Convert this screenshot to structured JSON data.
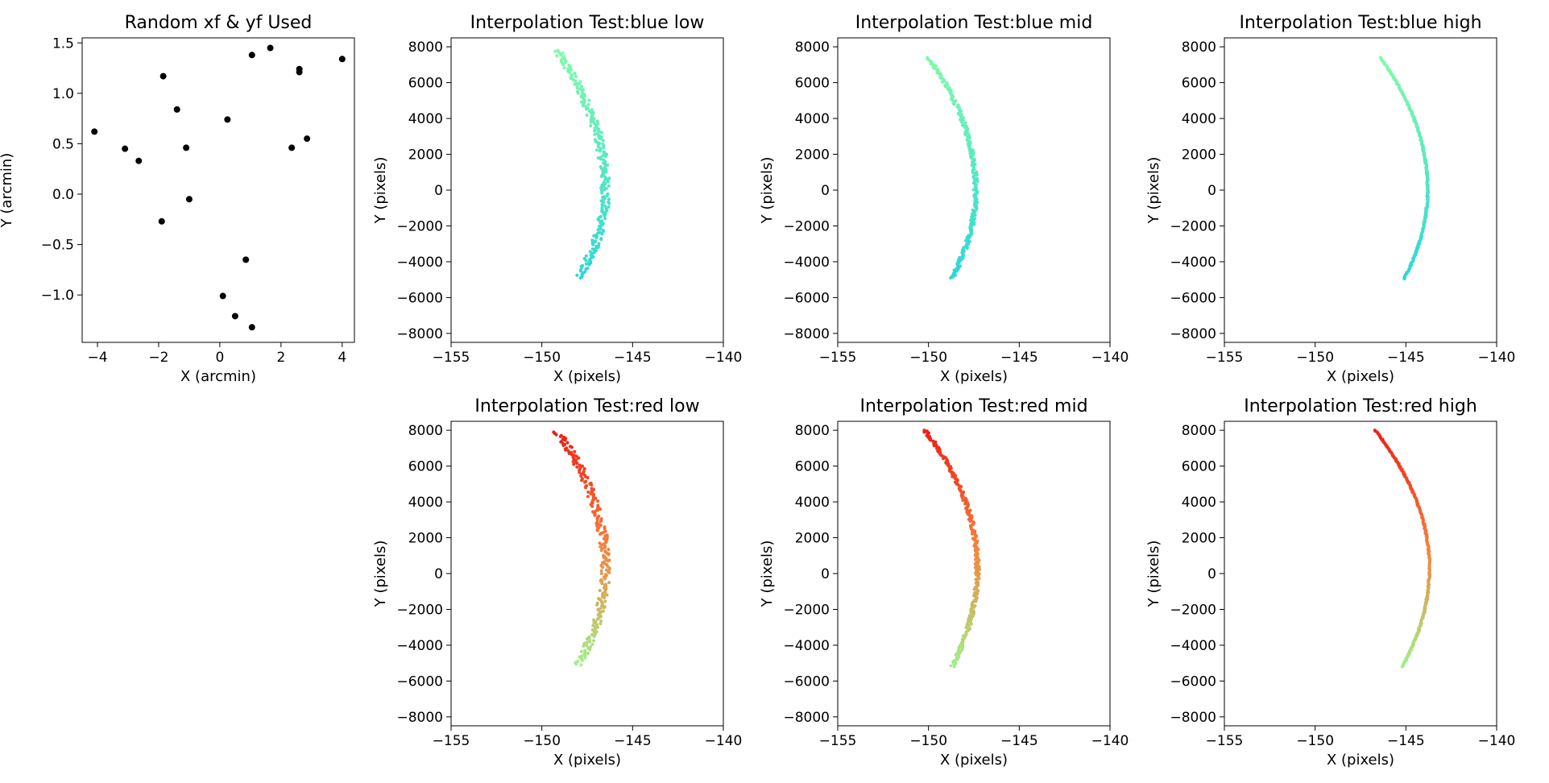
{
  "chart_data": [
    {
      "type": "scatter",
      "title": "Random xf & yf Used",
      "xlabel": "X (arcmin)",
      "ylabel": "Y (arcmin)",
      "xlim": [
        -4.5,
        4.4
      ],
      "ylim": [
        -1.47,
        1.55
      ],
      "xticks": [
        -4,
        -2,
        0,
        2,
        4
      ],
      "xtick_labels": [
        "−4",
        "−2",
        "0",
        "2",
        "4"
      ],
      "yticks": [
        -1.0,
        -0.5,
        0.0,
        0.5,
        1.0,
        1.5
      ],
      "ytick_labels": [
        "−1.0",
        "−0.5",
        "0.0",
        "0.5",
        "1.0",
        "1.5"
      ],
      "grid": false,
      "color": "#000000",
      "points": [
        [
          -4.1,
          0.62
        ],
        [
          -3.1,
          0.45
        ],
        [
          -2.65,
          0.33
        ],
        [
          -1.85,
          1.17
        ],
        [
          -1.4,
          0.84
        ],
        [
          -1.1,
          0.46
        ],
        [
          -1.0,
          -0.05
        ],
        [
          -1.9,
          -0.27
        ],
        [
          0.25,
          0.74
        ],
        [
          1.05,
          1.38
        ],
        [
          1.65,
          1.45
        ],
        [
          2.6,
          1.24
        ],
        [
          2.6,
          1.21
        ],
        [
          4.0,
          1.34
        ],
        [
          2.85,
          0.55
        ],
        [
          2.35,
          0.46
        ],
        [
          0.85,
          -0.65
        ],
        [
          0.1,
          -1.01
        ],
        [
          0.5,
          -1.21
        ],
        [
          1.05,
          -1.32
        ]
      ]
    },
    {
      "type": "scatter",
      "title": "Interpolation Test:blue low",
      "xlabel": "X (pixels)",
      "ylabel": "Y (pixels)",
      "xlim": [
        -155,
        -140
      ],
      "ylim": [
        -8500,
        8500
      ],
      "color_scale": "blue",
      "curve": {
        "x_top": -149.2,
        "y_top": 7800,
        "x_vertex": -146.5,
        "y_vertex": 0,
        "x_bottom": -148.0,
        "y_bottom": -4900
      },
      "scatter": 0.25
    },
    {
      "type": "scatter",
      "title": "Interpolation Test:blue mid",
      "xlabel": "X (pixels)",
      "ylabel": "Y (pixels)",
      "xlim": [
        -155,
        -140
      ],
      "ylim": [
        -8500,
        8500
      ],
      "color_scale": "blue",
      "curve": {
        "x_top": -150.0,
        "y_top": 7400,
        "x_vertex": -147.4,
        "y_vertex": 0,
        "x_bottom": -148.7,
        "y_bottom": -4900
      },
      "scatter": 0.12
    },
    {
      "type": "scatter",
      "title": "Interpolation Test:blue high",
      "xlabel": "X (pixels)",
      "ylabel": "Y (pixels)",
      "xlim": [
        -155,
        -140
      ],
      "ylim": [
        -8500,
        8500
      ],
      "color_scale": "blue",
      "curve": {
        "x_top": -146.4,
        "y_top": 7400,
        "x_vertex": -143.8,
        "y_vertex": 0,
        "x_bottom": -145.1,
        "y_bottom": -4950
      },
      "scatter": 0.04
    },
    {
      "type": "scatter",
      "title": "Interpolation Test:red low",
      "xlabel": "X (pixels)",
      "ylabel": "Y (pixels)",
      "xlim": [
        -155,
        -140
      ],
      "ylim": [
        -8500,
        8500
      ],
      "color_scale": "red",
      "curve": {
        "x_top": -149.1,
        "y_top": 7900,
        "x_vertex": -146.5,
        "y_vertex": 300,
        "x_bottom": -148.0,
        "y_bottom": -5100
      },
      "scatter": 0.25
    },
    {
      "type": "scatter",
      "title": "Interpolation Test:red mid",
      "xlabel": "X (pixels)",
      "ylabel": "Y (pixels)",
      "xlim": [
        -155,
        -140
      ],
      "ylim": [
        -8500,
        8500
      ],
      "color_scale": "red",
      "curve": {
        "x_top": -150.2,
        "y_top": 8000,
        "x_vertex": -147.3,
        "y_vertex": 300,
        "x_bottom": -148.7,
        "y_bottom": -5200
      },
      "scatter": 0.12
    },
    {
      "type": "scatter",
      "title": "Interpolation Test:red high",
      "xlabel": "X (pixels)",
      "ylabel": "Y (pixels)",
      "xlim": [
        -155,
        -140
      ],
      "ylim": [
        -8500,
        8500
      ],
      "color_scale": "red",
      "curve": {
        "x_top": -146.7,
        "y_top": 8000,
        "x_vertex": -143.7,
        "y_vertex": 300,
        "x_bottom": -145.2,
        "y_bottom": -5200
      },
      "scatter": 0.04
    }
  ],
  "interp_xticks": [
    -155,
    -150,
    -145,
    -140
  ],
  "interp_xtick_labels": [
    "−155",
    "−150",
    "−145",
    "−140"
  ],
  "interp_yticks": [
    -8000,
    -6000,
    -4000,
    -2000,
    0,
    2000,
    4000,
    6000,
    8000
  ],
  "interp_ytick_labels": [
    "−8000",
    "−6000",
    "−4000",
    "−2000",
    "0",
    "2000",
    "4000",
    "6000",
    "8000"
  ]
}
